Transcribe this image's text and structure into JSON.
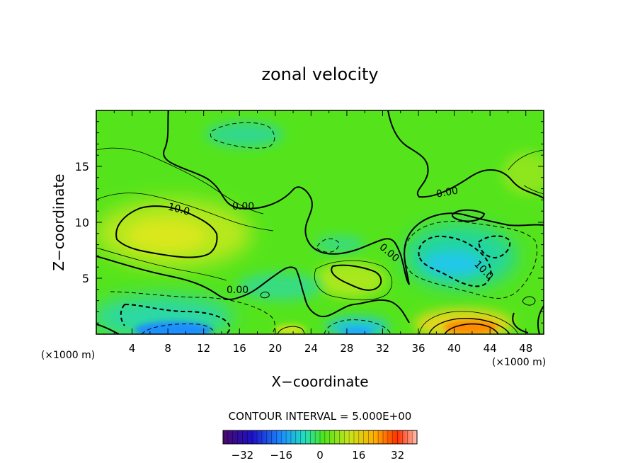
{
  "chart_data": {
    "type": "heatmap",
    "title": "zonal velocity",
    "xlabel": "X−coordinate",
    "ylabel": "Z−coordinate",
    "x_units": "(×1000 m)",
    "y_units": "(×1000 m)",
    "xlim": [
      0,
      50
    ],
    "ylim": [
      0,
      20
    ],
    "x_ticks": [
      "4",
      "8",
      "12",
      "16",
      "20",
      "24",
      "28",
      "32",
      "36",
      "40",
      "44",
      "48"
    ],
    "y_ticks": [
      "5",
      "10",
      "15"
    ],
    "grid": false,
    "contour_interval_text": "CONTOUR INTERVAL = 5.000E+00",
    "contour_labels": [
      "10.0",
      "0.00",
      "0.00",
      "0.00",
      "0.00",
      "10.0"
    ],
    "colorbar": {
      "range": [
        -40,
        40
      ],
      "ticks": [
        "−32",
        "−16",
        "0",
        "16",
        "32"
      ]
    },
    "features": [
      {
        "name": "positive-max-west",
        "x": 8,
        "z": 8.5,
        "value": 12
      },
      {
        "name": "negative-min-surface-west",
        "x": 9,
        "z": 0.5,
        "value": -24
      },
      {
        "name": "negative-min-surface-center",
        "x": 29,
        "z": 0.5,
        "value": -18
      },
      {
        "name": "positive-max-surface-east",
        "x": 42,
        "z": 0.7,
        "value": 28
      },
      {
        "name": "negative-min-east",
        "x": 40,
        "z": 6.5,
        "value": -18
      },
      {
        "name": "negative-top-center",
        "x": 17,
        "z": 18,
        "value": -6
      },
      {
        "name": "positive-mid-center",
        "x": 29,
        "z": 5.5,
        "value": 9
      }
    ]
  },
  "colors": {
    "background_field": "#55e41c",
    "positive_tint": "#b8e81a",
    "warm": "#ff8a00",
    "negative_tint": "#22d6a0",
    "cold": "#1b8fff",
    "contour_line": "#000000"
  }
}
